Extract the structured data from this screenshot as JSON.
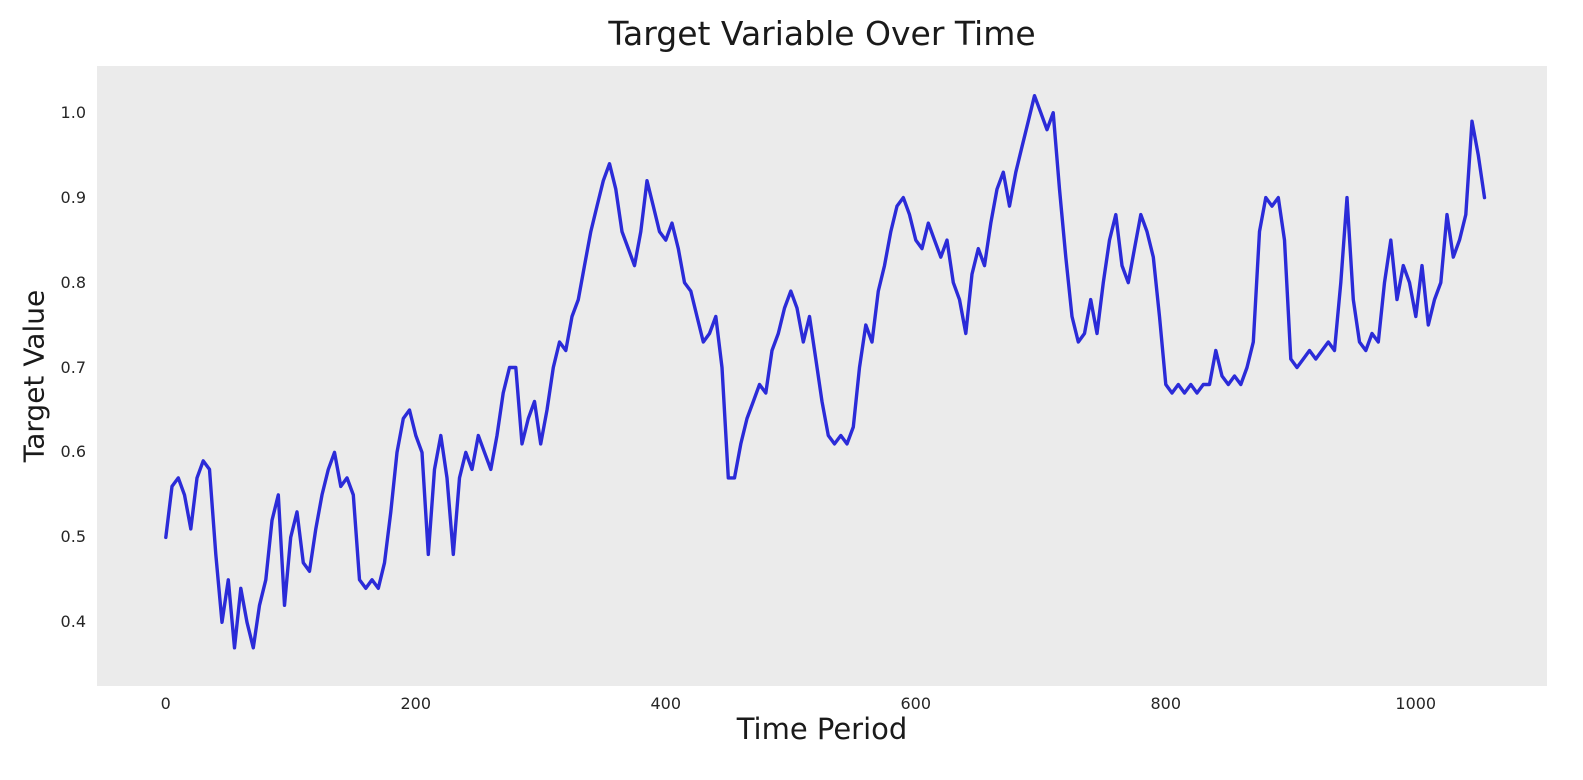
{
  "chart_data": {
    "type": "line",
    "title": "Target Variable Over Time",
    "xlabel": "Time Period",
    "ylabel": "Target Value",
    "x_ticks": [
      0,
      200,
      400,
      600,
      800,
      1000
    ],
    "y_ticks": [
      0.4,
      0.5,
      0.6,
      0.7,
      0.8,
      0.9,
      1.0
    ],
    "xlim": [
      -55,
      1105
    ],
    "ylim": [
      0.325,
      1.055
    ],
    "grid": false,
    "legend": "none",
    "line_color": "#2b2bd8",
    "plot_bg": "#ebebeb",
    "series": [
      {
        "name": "target",
        "x_start": 0,
        "x_step": 5,
        "values": [
          0.5,
          0.56,
          0.57,
          0.55,
          0.51,
          0.57,
          0.59,
          0.58,
          0.48,
          0.4,
          0.45,
          0.37,
          0.44,
          0.4,
          0.37,
          0.42,
          0.45,
          0.52,
          0.55,
          0.42,
          0.5,
          0.53,
          0.47,
          0.46,
          0.51,
          0.55,
          0.58,
          0.6,
          0.56,
          0.57,
          0.55,
          0.45,
          0.44,
          0.45,
          0.44,
          0.47,
          0.53,
          0.6,
          0.64,
          0.65,
          0.62,
          0.6,
          0.48,
          0.58,
          0.62,
          0.57,
          0.48,
          0.57,
          0.6,
          0.58,
          0.62,
          0.6,
          0.58,
          0.62,
          0.67,
          0.7,
          0.7,
          0.61,
          0.64,
          0.66,
          0.61,
          0.65,
          0.7,
          0.73,
          0.72,
          0.76,
          0.78,
          0.82,
          0.86,
          0.89,
          0.92,
          0.94,
          0.91,
          0.86,
          0.84,
          0.82,
          0.86,
          0.92,
          0.89,
          0.86,
          0.85,
          0.87,
          0.84,
          0.8,
          0.79,
          0.76,
          0.73,
          0.74,
          0.76,
          0.7,
          0.57,
          0.57,
          0.61,
          0.64,
          0.66,
          0.68,
          0.67,
          0.72,
          0.74,
          0.77,
          0.79,
          0.77,
          0.73,
          0.76,
          0.71,
          0.66,
          0.62,
          0.61,
          0.62,
          0.61,
          0.63,
          0.7,
          0.75,
          0.73,
          0.79,
          0.82,
          0.86,
          0.89,
          0.9,
          0.88,
          0.85,
          0.84,
          0.87,
          0.85,
          0.83,
          0.85,
          0.8,
          0.78,
          0.74,
          0.81,
          0.84,
          0.82,
          0.87,
          0.91,
          0.93,
          0.89,
          0.93,
          0.96,
          0.99,
          1.02,
          1.0,
          0.98,
          1.0,
          0.91,
          0.83,
          0.76,
          0.73,
          0.74,
          0.78,
          0.74,
          0.8,
          0.85,
          0.88,
          0.82,
          0.8,
          0.84,
          0.88,
          0.86,
          0.83,
          0.76,
          0.68,
          0.67,
          0.68,
          0.67,
          0.68,
          0.67,
          0.68,
          0.68,
          0.72,
          0.69,
          0.68,
          0.69,
          0.68,
          0.7,
          0.73,
          0.86,
          0.9,
          0.89,
          0.9,
          0.85,
          0.71,
          0.7,
          0.71,
          0.72,
          0.71,
          0.72,
          0.73,
          0.72,
          0.8,
          0.9,
          0.78,
          0.73,
          0.72,
          0.74,
          0.73,
          0.8,
          0.85,
          0.78,
          0.82,
          0.8,
          0.76,
          0.82,
          0.75,
          0.78,
          0.8,
          0.88,
          0.83,
          0.85,
          0.88,
          0.99,
          0.95,
          0.9
        ]
      }
    ]
  }
}
